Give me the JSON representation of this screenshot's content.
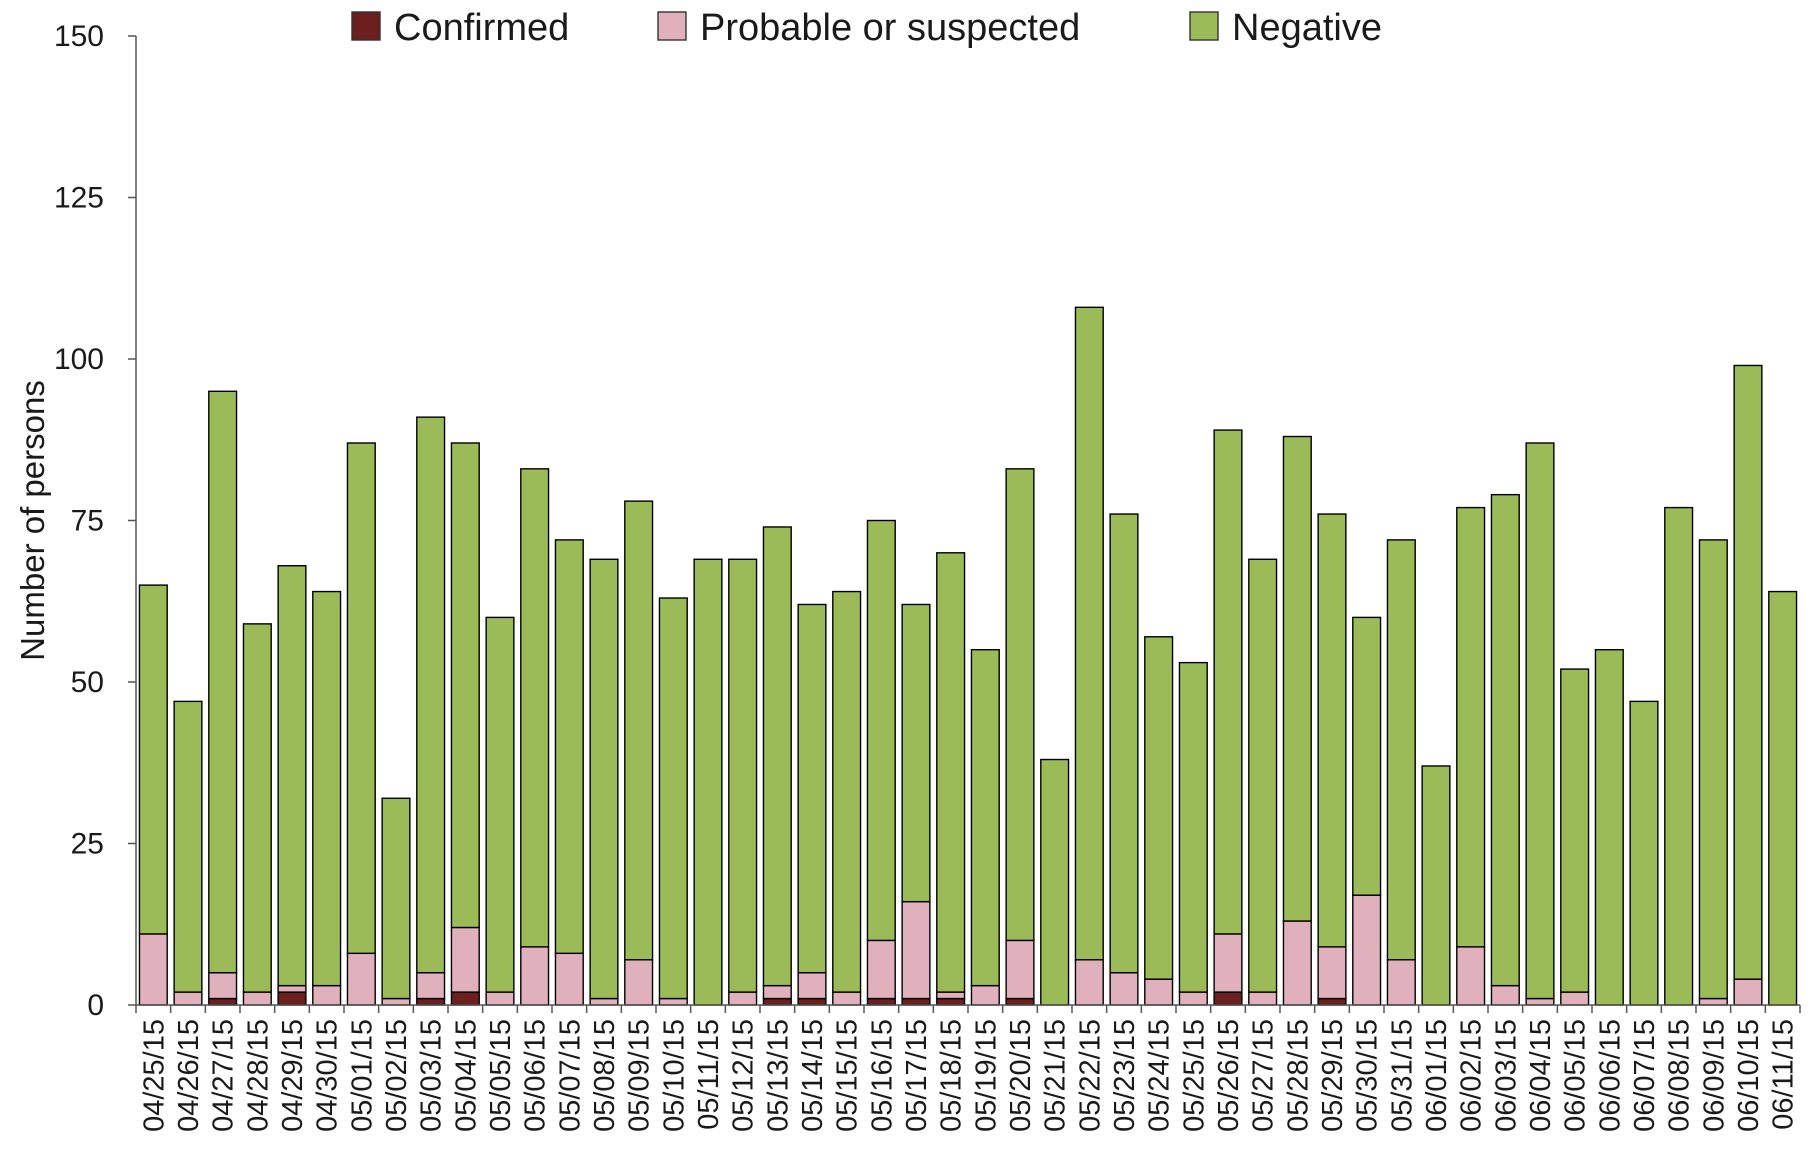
{
  "chart_data": {
    "type": "bar",
    "stacked": true,
    "title": "",
    "xlabel": "",
    "ylabel": "Number of persons",
    "ylim": [
      0,
      150
    ],
    "yticks": [
      0,
      25,
      50,
      75,
      100,
      125,
      150
    ],
    "grid": false,
    "legend_position": "top",
    "categories": [
      "04/25/15",
      "04/26/15",
      "04/27/15",
      "04/28/15",
      "04/29/15",
      "04/30/15",
      "05/01/15",
      "05/02/15",
      "05/03/15",
      "05/04/15",
      "05/05/15",
      "05/06/15",
      "05/07/15",
      "05/08/15",
      "05/09/15",
      "05/10/15",
      "05/11/15",
      "05/12/15",
      "05/13/15",
      "05/14/15",
      "05/15/15",
      "05/16/15",
      "05/17/15",
      "05/18/15",
      "05/19/15",
      "05/20/15",
      "05/21/15",
      "05/22/15",
      "05/23/15",
      "05/24/15",
      "05/25/15",
      "05/26/15",
      "05/27/15",
      "05/28/15",
      "05/29/15",
      "05/30/15",
      "05/31/15",
      "06/01/15",
      "06/02/15",
      "06/03/15",
      "06/04/15",
      "06/05/15",
      "06/06/15",
      "06/07/15",
      "06/08/15",
      "06/09/15",
      "06/10/15",
      "06/11/15"
    ],
    "series": [
      {
        "name": "Confirmed",
        "color": "#6b1f1f",
        "values": [
          0,
          0,
          1,
          0,
          2,
          0,
          0,
          0,
          1,
          2,
          0,
          0,
          0,
          0,
          0,
          0,
          0,
          0,
          1,
          1,
          0,
          1,
          1,
          1,
          0,
          1,
          0,
          0,
          0,
          0,
          0,
          2,
          0,
          0,
          1,
          0,
          0,
          0,
          0,
          0,
          0,
          0,
          0,
          0,
          0,
          0,
          0,
          0
        ]
      },
      {
        "name": "Probable or suspected",
        "color": "#e0b0bd",
        "values": [
          11,
          2,
          4,
          2,
          1,
          3,
          8,
          1,
          4,
          10,
          2,
          9,
          8,
          1,
          7,
          1,
          0,
          2,
          2,
          4,
          2,
          9,
          15,
          1,
          3,
          9,
          0,
          7,
          5,
          4,
          2,
          9,
          2,
          13,
          8,
          17,
          7,
          0,
          9,
          3,
          1,
          2,
          0,
          0,
          0,
          1,
          4,
          0
        ]
      },
      {
        "name": "Negative",
        "color": "#9bbb59",
        "values": [
          54,
          45,
          90,
          57,
          65,
          61,
          79,
          31,
          86,
          75,
          58,
          74,
          64,
          68,
          71,
          62,
          69,
          67,
          71,
          57,
          62,
          65,
          46,
          68,
          52,
          73,
          38,
          101,
          71,
          53,
          51,
          78,
          67,
          75,
          67,
          43,
          65,
          37,
          68,
          76,
          86,
          50,
          55,
          47,
          77,
          71,
          95,
          64
        ]
      }
    ]
  }
}
